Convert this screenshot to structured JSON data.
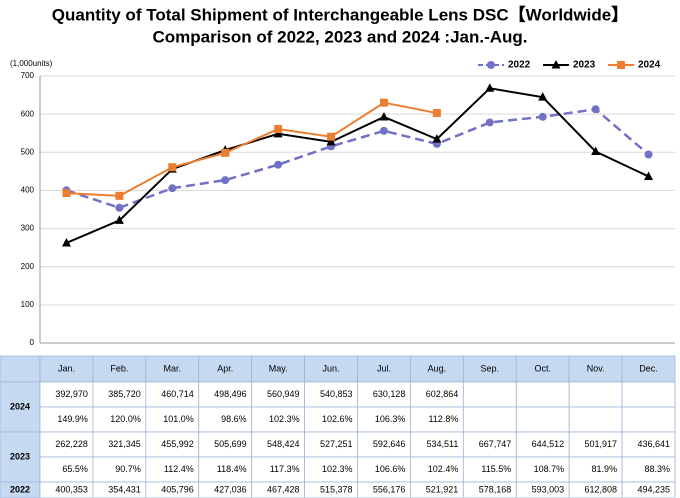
{
  "chart_data": {
    "type": "line",
    "title": "Quantity of Total Shipment of Interchangeable Lens DSC【Worldwide】",
    "subtitle": "Comparison of 2022, 2023 and 2024 :Jan.-Aug.",
    "y_label": "(1,000units)",
    "categories": [
      "Jan.",
      "Feb.",
      "Mar.",
      "Apr.",
      "May.",
      "Jun.",
      "Jul.",
      "Aug.",
      "Sep.",
      "Oct.",
      "Nov.",
      "Dec."
    ],
    "ylim": [
      0,
      700
    ],
    "yticks": [
      0,
      100,
      200,
      300,
      400,
      500,
      600,
      700
    ],
    "grid": true,
    "legend": "top-right",
    "series": [
      {
        "name": "2022",
        "color": "#7171c6",
        "marker": "circle",
        "dashed": true,
        "values": [
          400.353,
          354.431,
          405.796,
          427.036,
          467.428,
          515.378,
          556.176,
          521.921,
          578.168,
          593.003,
          612.808,
          494.235
        ],
        "value_labels": [
          "400,353",
          "354,431",
          "405,796",
          "427,036",
          "467,428",
          "515,378",
          "556,176",
          "521,921",
          "578,168",
          "593,003",
          "612,808",
          "494,235"
        ]
      },
      {
        "name": "2023",
        "color": "#000000",
        "marker": "triangle",
        "dashed": false,
        "values": [
          262.228,
          321.345,
          455.992,
          505.699,
          548.424,
          527.251,
          592.646,
          534.511,
          667.747,
          644.512,
          501.917,
          436.641
        ],
        "value_labels": [
          "262,228",
          "321,345",
          "455,992",
          "505,699",
          "548,424",
          "527,251",
          "592,646",
          "534,511",
          "667,747",
          "644,512",
          "501,917",
          "436,641"
        ],
        "yoy": [
          "65.5%",
          "90.7%",
          "112.4%",
          "118.4%",
          "117.3%",
          "102.3%",
          "106.6%",
          "102.4%",
          "115.5%",
          "108.7%",
          "81.9%",
          "88.3%"
        ]
      },
      {
        "name": "2024",
        "color": "#ed7d31",
        "marker": "square",
        "dashed": false,
        "values": [
          392.97,
          385.72,
          460.714,
          498.496,
          560.949,
          540.853,
          630.128,
          602.864,
          null,
          null,
          null,
          null
        ],
        "value_labels": [
          "392,970",
          "385,720",
          "460,714",
          "498,496",
          "560,949",
          "540,853",
          "630,128",
          "602,864",
          null,
          null,
          null,
          null
        ],
        "yoy": [
          "149.9%",
          "120.0%",
          "101.0%",
          "98.6%",
          "102.3%",
          "102.6%",
          "106.3%",
          "112.8%",
          null,
          null,
          null,
          null
        ]
      }
    ]
  }
}
